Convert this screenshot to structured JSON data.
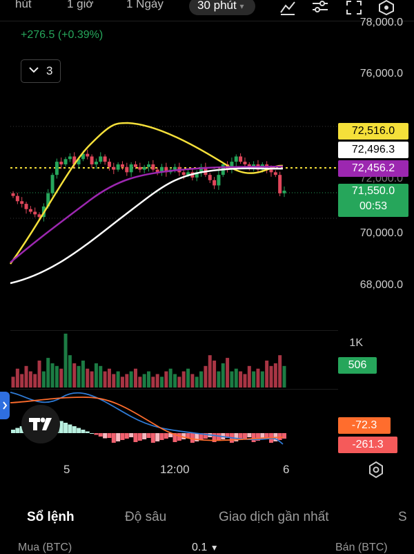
{
  "intervals": [
    {
      "label": "hút",
      "active": false
    },
    {
      "label": "1 giờ",
      "active": false
    },
    {
      "label": "1 Ngày",
      "active": false
    },
    {
      "label": "30 phút",
      "active": true
    }
  ],
  "toolbar_icons": [
    "indicator-icon",
    "settings-sliders-icon",
    "fullscreen-icon",
    "hexagon-settings-icon"
  ],
  "change_text": "+276.5 (+0.39%)",
  "indicator_count": "3",
  "price_axis": [
    "78,000.0",
    "76,000.0",
    "72,000.0",
    "70,000.0",
    "68,000.0"
  ],
  "price_tags": [
    {
      "label": "72,516.0",
      "bg": "#f5e03a",
      "fg": "#000"
    },
    {
      "label": "72,496.3",
      "bg": "#ffffff",
      "fg": "#000"
    },
    {
      "label": "72,456.2",
      "bg": "#9c27b0",
      "fg": "#fff"
    }
  ],
  "current_price": {
    "label": "71,550.0",
    "countdown": "00:53",
    "bg": "#26a65b"
  },
  "volume_axis_label": "1K",
  "volume_tag": "506",
  "macd_tags": [
    {
      "label": "-72.3",
      "bg": "#ff6d2d"
    },
    {
      "label": "-261.3",
      "bg": "#f55a5a"
    }
  ],
  "x_axis": [
    "5",
    "12:00",
    "6"
  ],
  "bottom_tabs": [
    {
      "label": "Sổ lệnh",
      "active": true
    },
    {
      "label": "Độ sâu",
      "active": false
    },
    {
      "label": "Giao dịch gần nhất",
      "active": false
    },
    {
      "label": "S",
      "active": false
    }
  ],
  "footer": {
    "buy": "Mua (BTC)",
    "qty": "0.1",
    "sell": "Bán (BTC)"
  },
  "colors": {
    "up": "#26a65b",
    "down": "#e0475b",
    "ema_fast": "#f5e03a",
    "ema_mid": "#9c27b0",
    "ema_slow": "#ffffff",
    "macd": "#2f7bd6",
    "signal": "#ff6d2d",
    "current_line": "#f5e03a"
  },
  "chart_data": {
    "type": "candlestick",
    "y_range": [
      67000,
      78500
    ],
    "current_price": 71550.0,
    "ema_levels": [
      72516.0,
      72496.3,
      72456.2
    ],
    "x_tick_labels": [
      "5",
      "12:00",
      "6"
    ]
  }
}
